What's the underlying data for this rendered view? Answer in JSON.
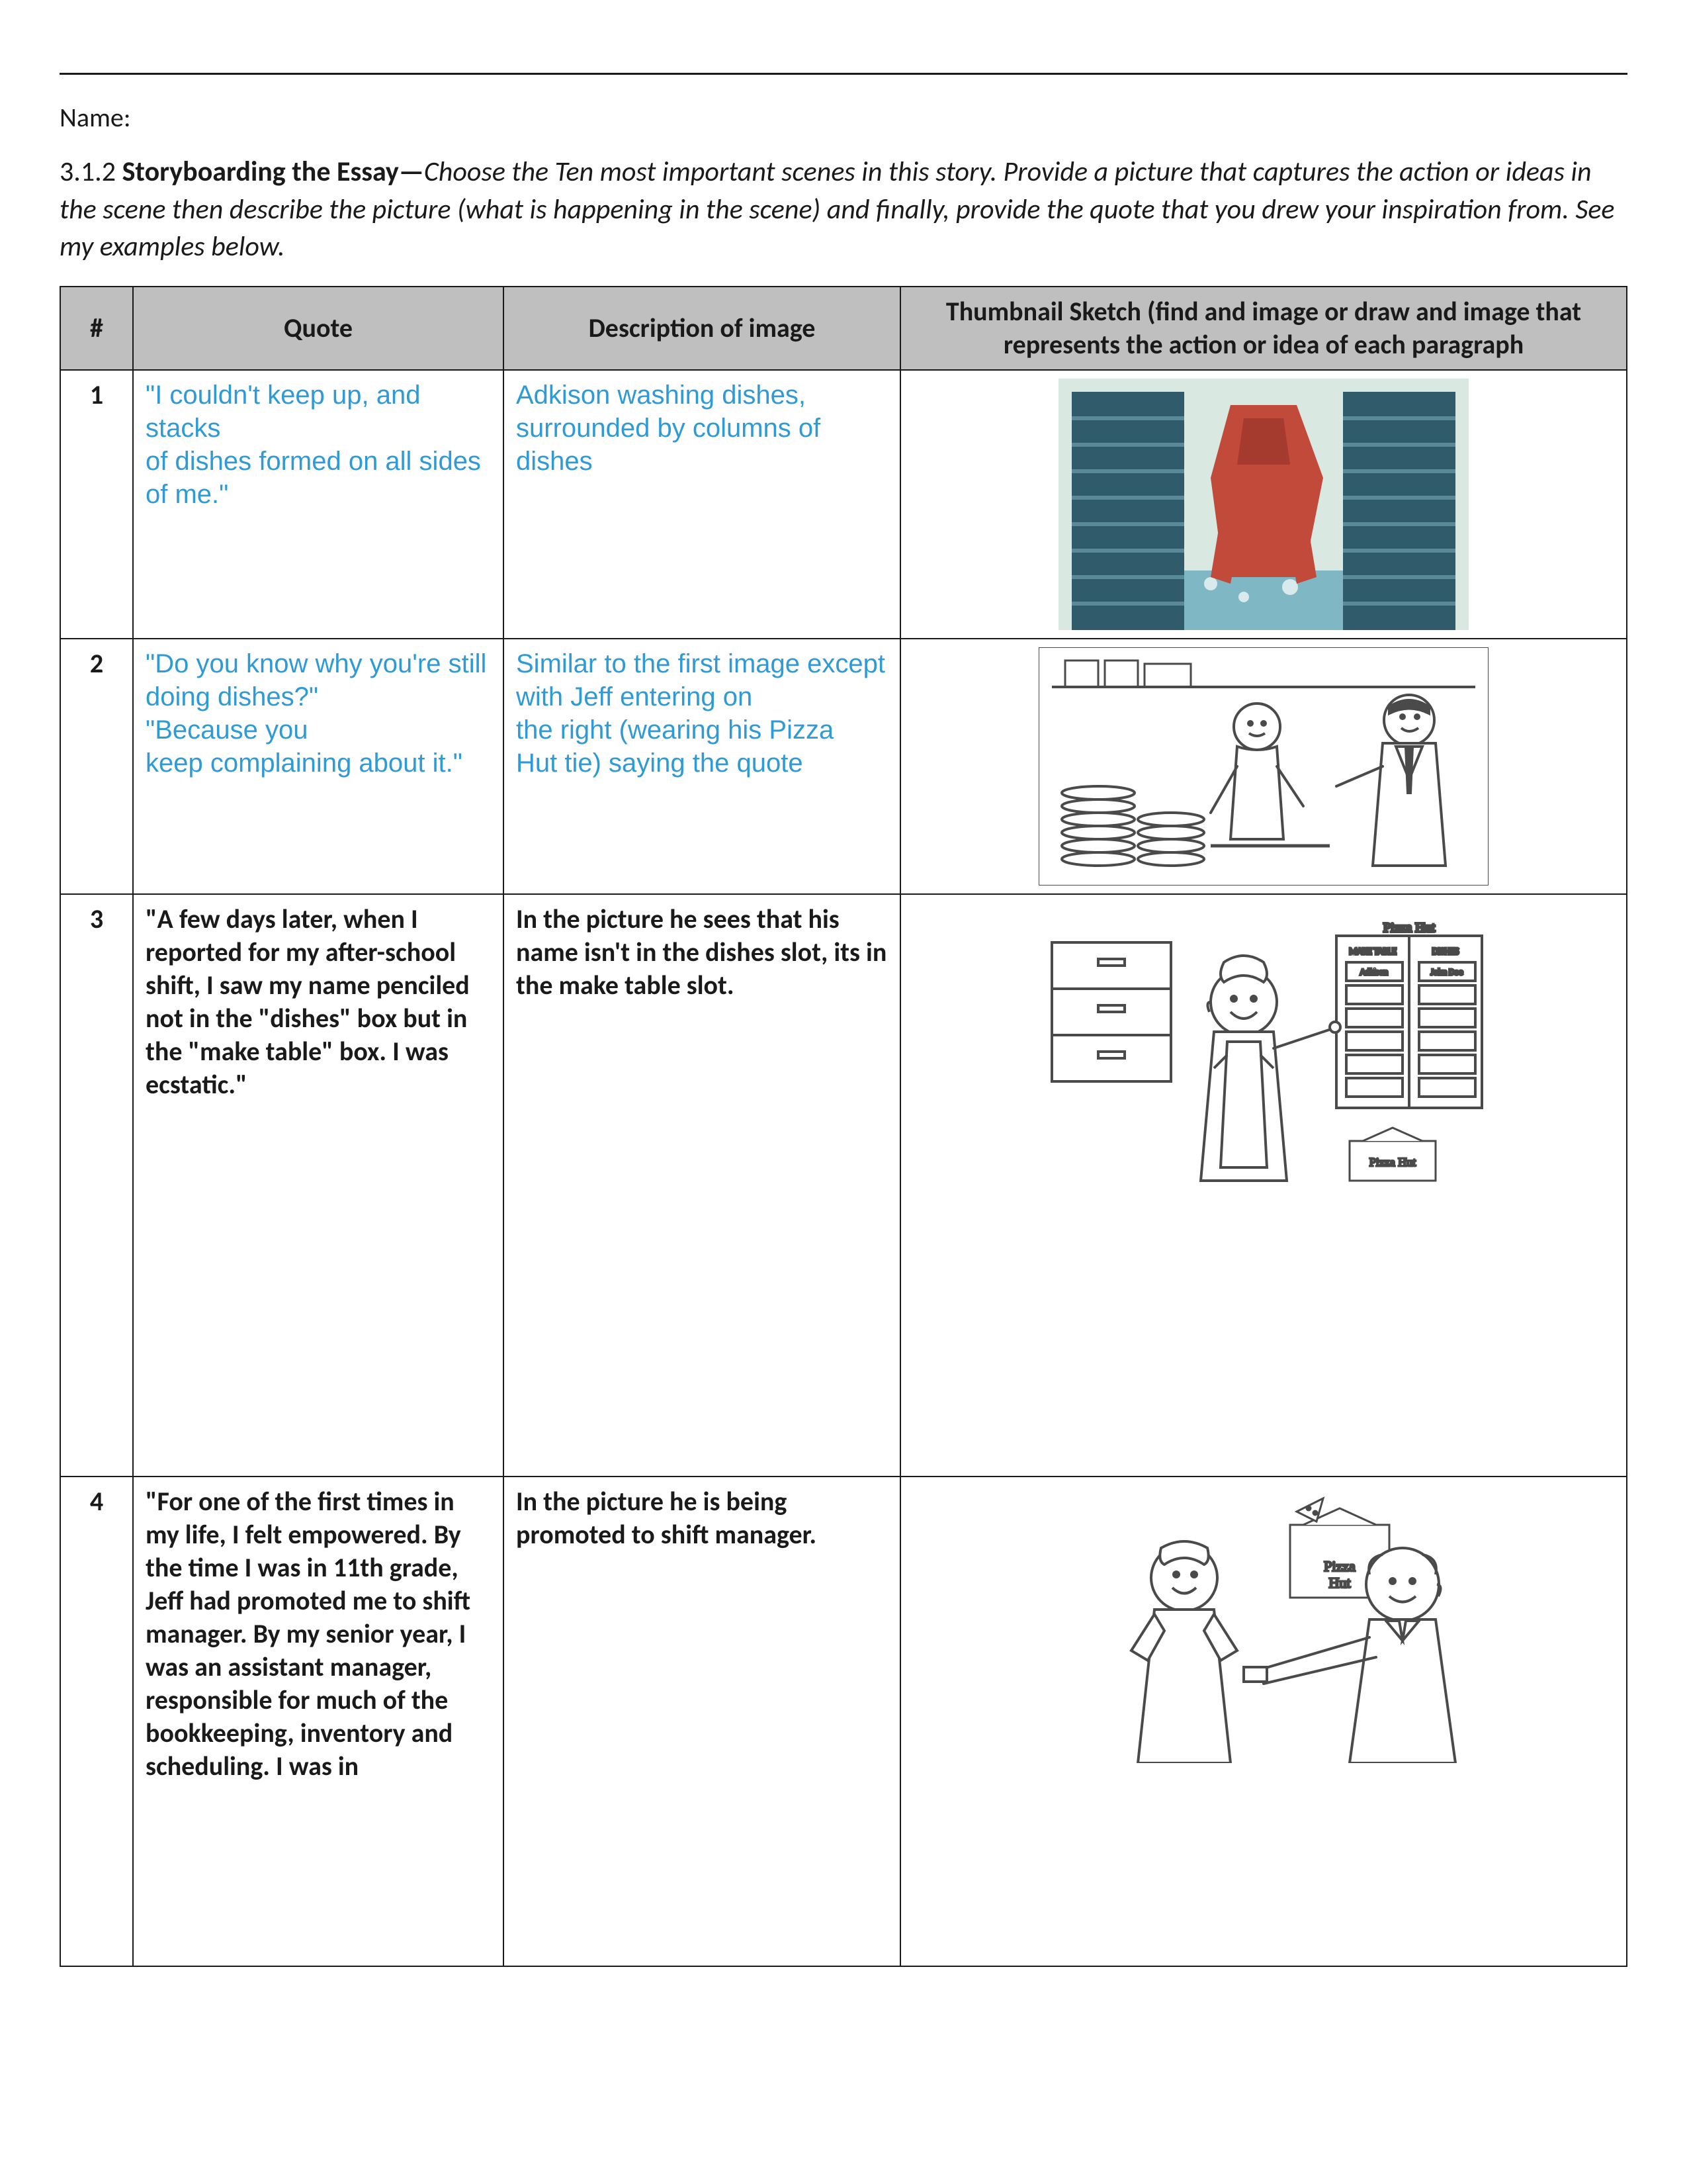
{
  "header": {
    "name_label": "Name:",
    "prefix": "3.1.2 ",
    "title": "Storyboarding the Essay—",
    "body": "Choose the Ten most important scenes in this story. Provide a picture that captures the action or ideas in the scene then describe the picture (what is happening in the scene) and finally, provide the quote that you drew your inspiration from. See my examples below."
  },
  "columns": {
    "num": "#",
    "quote": "Quote",
    "desc": "Description of image",
    "thumb": "Thumbnail Sketch (find and image or draw and image that represents the action or idea of each paragraph"
  },
  "rows": [
    {
      "num": "1",
      "quote": "\"I couldn't keep up, and stacks\nof dishes formed on all sides\nof me.\"",
      "desc": "Adkison washing dishes, surrounded by columns of dishes",
      "style": "blue",
      "thumb": "dishes"
    },
    {
      "num": "2",
      "quote": "\"Do you know why you're still\ndoing dishes?\"\n\"Because you\nkeep complaining about it.\"",
      "desc": "Similar to the first image except with Jeff entering on\nthe right (wearing his Pizza\nHut tie) saying the quote",
      "style": "blue",
      "thumb": "jeff-enter"
    },
    {
      "num": "3",
      "quote": "\"A few days later, when I reported for my after-school shift, I saw my name penciled not in the \"dishes\" box but in the \"make table\" box. I was ecstatic.\"",
      "desc": "In the picture he sees that his name isn't in the dishes slot, its in the make table slot.",
      "style": "bold",
      "thumb": "schedule"
    },
    {
      "num": "4",
      "quote": "\"For one of the first times in my life, I felt empowered. By the time I was in 11th grade, Jeff had promoted me to shift manager. By my senior year, I was an assistant manager, responsible for much of the bookkeeping, inventory and scheduling. I was in",
      "desc": "In the picture he is being promoted to shift manager.",
      "style": "bold",
      "thumb": "promotion"
    }
  ],
  "colors": {
    "blue_text": "#2e9bd6",
    "header_bg": "#bfbfbf",
    "border": "#1a1a1a",
    "dish_stack": "#2f5b6b",
    "dish_stack_light": "#5a8a98",
    "person_red": "#c14a3a",
    "sink_bg": "#7fb8c4",
    "line_art": "#4a4a4a"
  }
}
